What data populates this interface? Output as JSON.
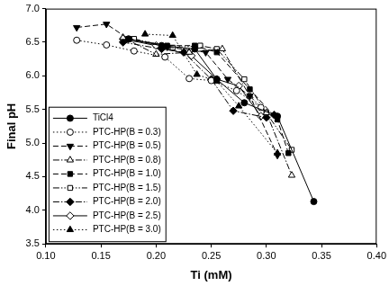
{
  "chart_data": {
    "type": "line",
    "x_label": "Ti (mM)",
    "y_label": "Final pH",
    "xlim": [
      0.1,
      0.4
    ],
    "ylim": [
      3.5,
      7.0
    ],
    "xticks": [
      {
        "value": 0.1,
        "label": "0.10"
      },
      {
        "value": 0.15,
        "label": "0.15"
      },
      {
        "value": 0.2,
        "label": "0.20"
      },
      {
        "value": 0.25,
        "label": "0.25"
      },
      {
        "value": 0.3,
        "label": "0.30"
      },
      {
        "value": 0.35,
        "label": "0.35"
      },
      {
        "value": 0.4,
        "label": "0.40"
      }
    ],
    "yticks": [
      3.5,
      {
        "value": 4.0,
        "label": "4.0"
      },
      4.5,
      {
        "value": 5.0,
        "label": "5.0"
      },
      5.5,
      {
        "value": 6.0,
        "label": "6.0"
      },
      6.5,
      {
        "value": 7.0,
        "label": "7.0"
      }
    ],
    "grid": false,
    "legend": "lower left",
    "series": [
      {
        "name": "TiCl4",
        "color": "#000000",
        "marker": "filled_circle",
        "line_style": "solid",
        "x": [
          0.175,
          0.205,
          0.235,
          0.255,
          0.28,
          0.31,
          0.343
        ],
        "values": [
          6.55,
          6.45,
          6.4,
          5.95,
          5.6,
          5.4,
          4.13
        ]
      },
      {
        "name": "PTC-HP(B = 0.3)",
        "color": "#000000",
        "marker": "open_circle",
        "line_style": "dotted",
        "x": [
          0.128,
          0.155,
          0.18,
          0.208,
          0.23,
          0.25,
          0.273,
          0.295
        ],
        "values": [
          6.53,
          6.46,
          6.37,
          6.28,
          5.96,
          5.93,
          5.78,
          5.53
        ]
      },
      {
        "name": "PTC-HP(B = 0.5)",
        "color": "#000000",
        "marker": "filled_triangle_down",
        "line_style": "dashed",
        "x": [
          0.128,
          0.155,
          0.175,
          0.21,
          0.245,
          0.265,
          0.285,
          0.31
        ],
        "values": [
          6.72,
          6.77,
          6.55,
          6.43,
          6.35,
          5.95,
          5.7,
          4.82
        ]
      },
      {
        "name": "PTC-HP(B = 0.8)",
        "color": "#000000",
        "marker": "open_triangle",
        "line_style": "dashdot",
        "x": [
          0.17,
          0.2,
          0.23,
          0.26,
          0.285,
          0.3,
          0.323
        ],
        "values": [
          6.57,
          6.32,
          6.35,
          6.4,
          5.7,
          5.45,
          4.52
        ]
      },
      {
        "name": "PTC-HP(B = 1.0)",
        "color": "#000000",
        "marker": "filled_square",
        "line_style": "dashed",
        "x": [
          0.175,
          0.21,
          0.235,
          0.255,
          0.285,
          0.31,
          0.32
        ],
        "values": [
          6.55,
          6.45,
          6.45,
          6.35,
          5.8,
          5.35,
          4.85
        ]
      },
      {
        "name": "PTC-HP(B = 1.5)",
        "color": "#000000",
        "marker": "open_square",
        "line_style": "dashdotdot",
        "x": [
          0.18,
          0.215,
          0.24,
          0.255,
          0.28,
          0.3,
          0.323
        ],
        "values": [
          6.55,
          6.42,
          6.45,
          6.4,
          5.95,
          5.45,
          4.9
        ]
      },
      {
        "name": "PTC-HP(B = 2.0)",
        "color": "#000000",
        "marker": "filled_diamond",
        "line_style": "dashdot",
        "x": [
          0.17,
          0.205,
          0.225,
          0.25,
          0.27,
          0.3,
          0.307
        ],
        "values": [
          6.5,
          6.4,
          6.35,
          5.95,
          5.48,
          5.38,
          5.42
        ]
      },
      {
        "name": "PTC-HP(B = 2.5)",
        "color": "#000000",
        "marker": "open_diamond",
        "line_style": "solid",
        "x": [
          0.17,
          0.2,
          0.232,
          0.255,
          0.275,
          0.295
        ],
        "values": [
          6.55,
          6.45,
          6.3,
          5.95,
          5.85,
          5.4
        ]
      },
      {
        "name": "PTC-HP(B = 3.0)",
        "color": "#000000",
        "marker": "filled_triangle",
        "line_style": "dotted",
        "x": [
          0.19,
          0.215,
          0.237,
          0.255,
          0.275,
          0.31
        ],
        "values": [
          6.62,
          6.6,
          6.02,
          5.92,
          5.55,
          4.85
        ]
      }
    ]
  }
}
